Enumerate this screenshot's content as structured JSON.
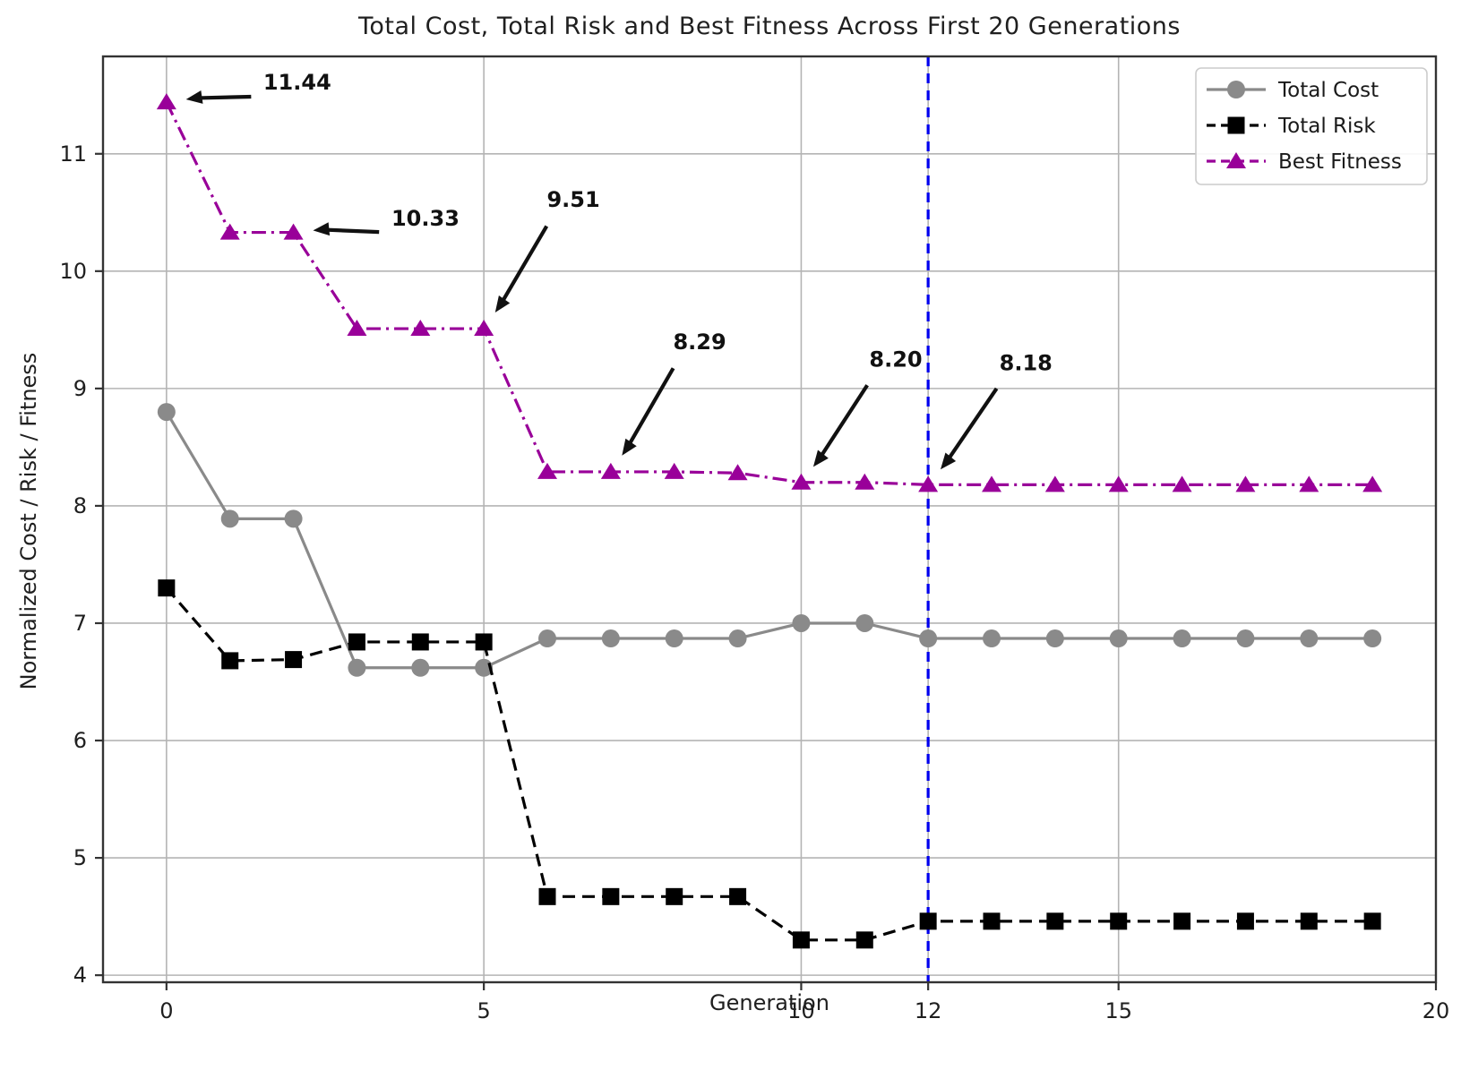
{
  "figure": {
    "background": "#ffffff",
    "plot_border_color": "#333333",
    "grid_color": "#b4b4b4"
  },
  "chart_data": {
    "type": "line",
    "title": "Total Cost, Total Risk and Best Fitness Across First 20 Generations",
    "xlabel": "Generation",
    "ylabel": "Normalized Cost / Risk / Fitness",
    "x": [
      0,
      1,
      2,
      3,
      4,
      5,
      6,
      7,
      8,
      9,
      10,
      11,
      12,
      13,
      14,
      15,
      16,
      17,
      18,
      19
    ],
    "series": [
      {
        "name": "Total Cost",
        "color": "#8a8a8a",
        "linestyle": "solid",
        "marker": "circle",
        "values": [
          8.8,
          7.89,
          7.89,
          6.62,
          6.62,
          6.62,
          6.87,
          6.87,
          6.87,
          6.87,
          7.0,
          7.0,
          6.87,
          6.87,
          6.87,
          6.87,
          6.87,
          6.87,
          6.87,
          6.87
        ]
      },
      {
        "name": "Total Risk",
        "color": "#000000",
        "linestyle": "dashed",
        "marker": "square",
        "values": [
          7.3,
          6.68,
          6.69,
          6.84,
          6.84,
          6.84,
          4.67,
          4.67,
          4.67,
          4.67,
          4.3,
          4.3,
          4.46,
          4.46,
          4.46,
          4.46,
          4.46,
          4.46,
          4.46,
          4.46
        ]
      },
      {
        "name": "Best Fitness",
        "color": "#990099",
        "linestyle": "dashdot",
        "marker": "triangle",
        "values": [
          11.44,
          10.33,
          10.33,
          9.51,
          9.51,
          9.51,
          8.29,
          8.29,
          8.29,
          8.28,
          8.2,
          8.2,
          8.18,
          8.18,
          8.18,
          8.18,
          8.18,
          8.18,
          8.18,
          8.18
        ]
      }
    ],
    "xlim": [
      -1,
      20
    ],
    "ylim": [
      3.94,
      11.83
    ],
    "xticks": [
      0,
      5,
      10,
      12,
      15,
      20
    ],
    "yticks": [
      4,
      5,
      6,
      7,
      8,
      9,
      10,
      11
    ],
    "grid": true,
    "legend_position": "upper right",
    "vline": {
      "x": 12,
      "color": "#0000ee",
      "linestyle": "dashed"
    },
    "annotations": [
      {
        "label": "11.44",
        "point": [
          0,
          11.44
        ],
        "text": [
          2.06,
          11.6
        ]
      },
      {
        "label": "10.33",
        "point": [
          2,
          10.33
        ],
        "text": [
          4.08,
          10.44
        ]
      },
      {
        "label": "9.51",
        "point": [
          5,
          9.51
        ],
        "text": [
          6.41,
          10.6
        ]
      },
      {
        "label": "8.29",
        "point": [
          7,
          8.29
        ],
        "text": [
          8.4,
          9.39
        ]
      },
      {
        "label": "8.20",
        "point": [
          10,
          8.2
        ],
        "text": [
          11.49,
          9.24
        ]
      },
      {
        "label": "8.18",
        "point": [
          12,
          8.18
        ],
        "text": [
          13.54,
          9.21
        ]
      }
    ]
  }
}
